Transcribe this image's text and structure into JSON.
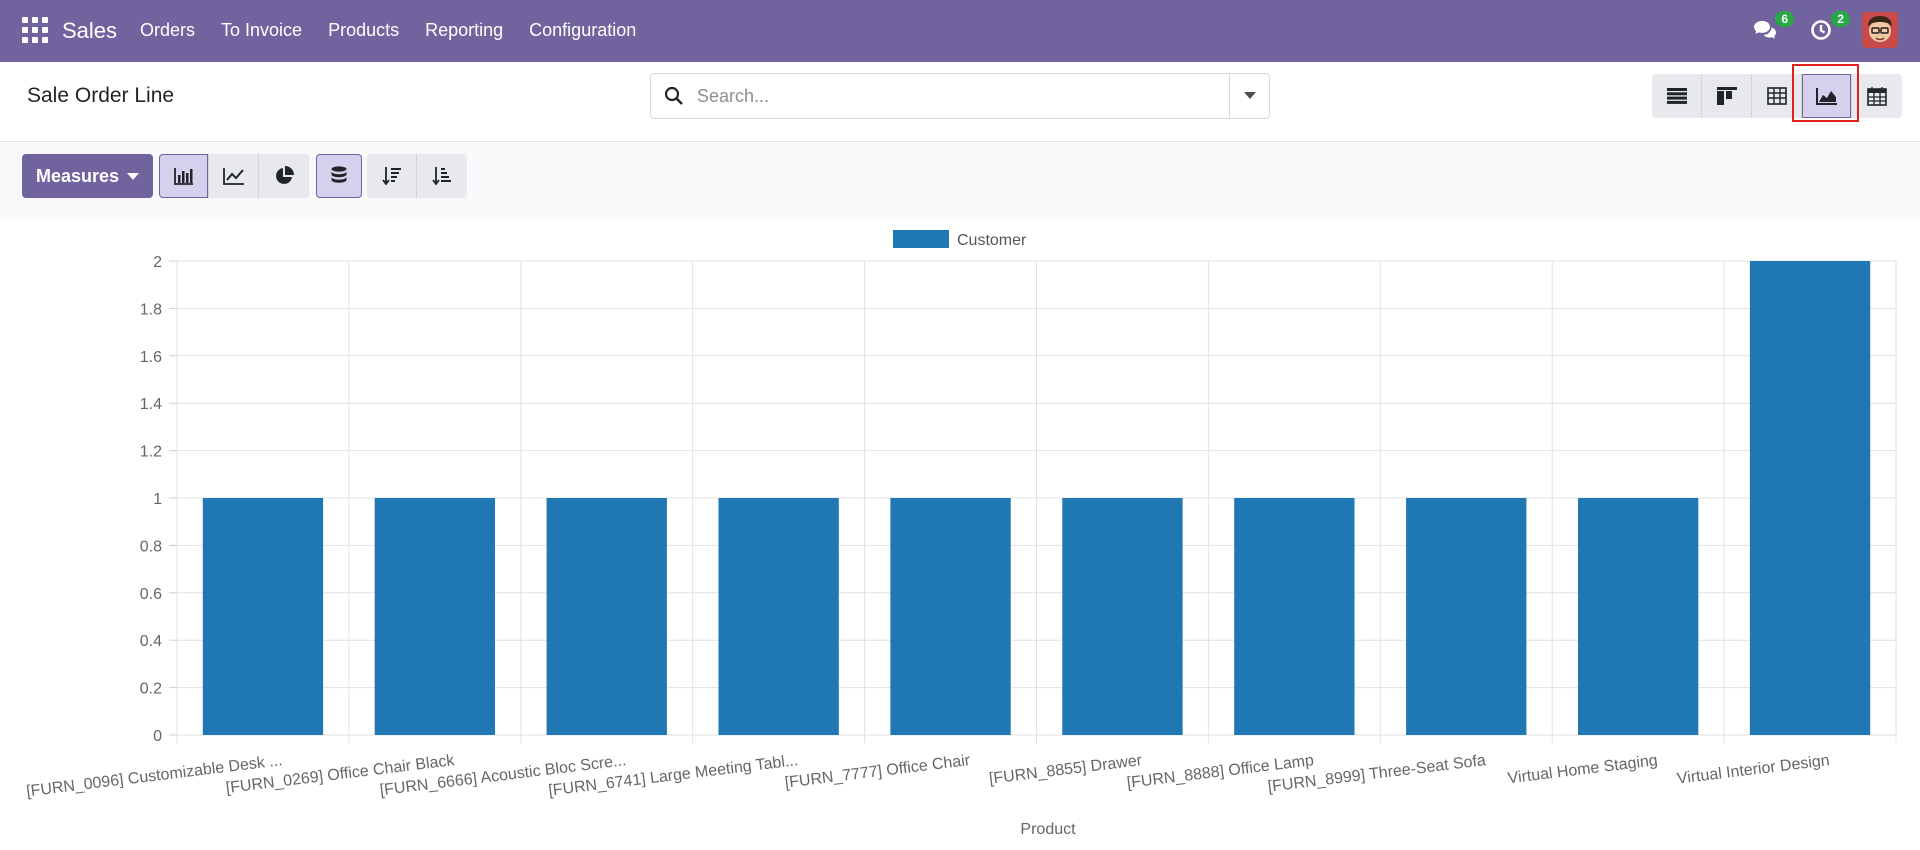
{
  "navbar": {
    "app_name": "Sales",
    "menu": [
      "Orders",
      "To Invoice",
      "Products",
      "Reporting",
      "Configuration"
    ],
    "messages_count": "6",
    "activities_count": "2",
    "accent": "#71639e",
    "badge_color": "#28a745"
  },
  "control": {
    "title": "Sale Order Line",
    "search_placeholder": "Search...",
    "views": [
      "list-icon",
      "kanban-icon",
      "pivot-icon",
      "graph-icon",
      "calendar-icon"
    ],
    "active_view": "graph-icon"
  },
  "toolbar": {
    "measures_label": "Measures",
    "chart_types": [
      "bar-chart-icon",
      "line-chart-icon",
      "pie-chart-icon"
    ],
    "active_chart": "bar-chart-icon",
    "stacked_icon": "database-icon",
    "sort_icons": [
      "sort-descending-icon",
      "sort-ascending-icon"
    ]
  },
  "chart_data": {
    "type": "bar",
    "legend": "Customer",
    "legend_position": "top-center",
    "xlabel": "Product",
    "ylabel": "",
    "ylim": [
      0,
      2
    ],
    "yticks": [
      "0",
      "0.2",
      "0.4",
      "0.6",
      "0.8",
      "1",
      "1.2",
      "1.4",
      "1.6",
      "1.8",
      "2"
    ],
    "categories": [
      "[FURN_0096] Customizable Desk ...",
      "[FURN_0269] Office Chair Black",
      "[FURN_6666] Acoustic Bloc Scre...",
      "[FURN_6741] Large Meeting Tabl...",
      "[FURN_7777] Office Chair",
      "[FURN_8855] Drawer",
      "[FURN_8888] Office Lamp",
      "[FURN_8999] Three-Seat Sofa",
      "Virtual Home Staging",
      "Virtual Interior Design"
    ],
    "values": [
      1,
      1,
      1,
      1,
      1,
      1,
      1,
      1,
      1,
      2
    ],
    "color": "#1f77b4",
    "grid": true
  }
}
